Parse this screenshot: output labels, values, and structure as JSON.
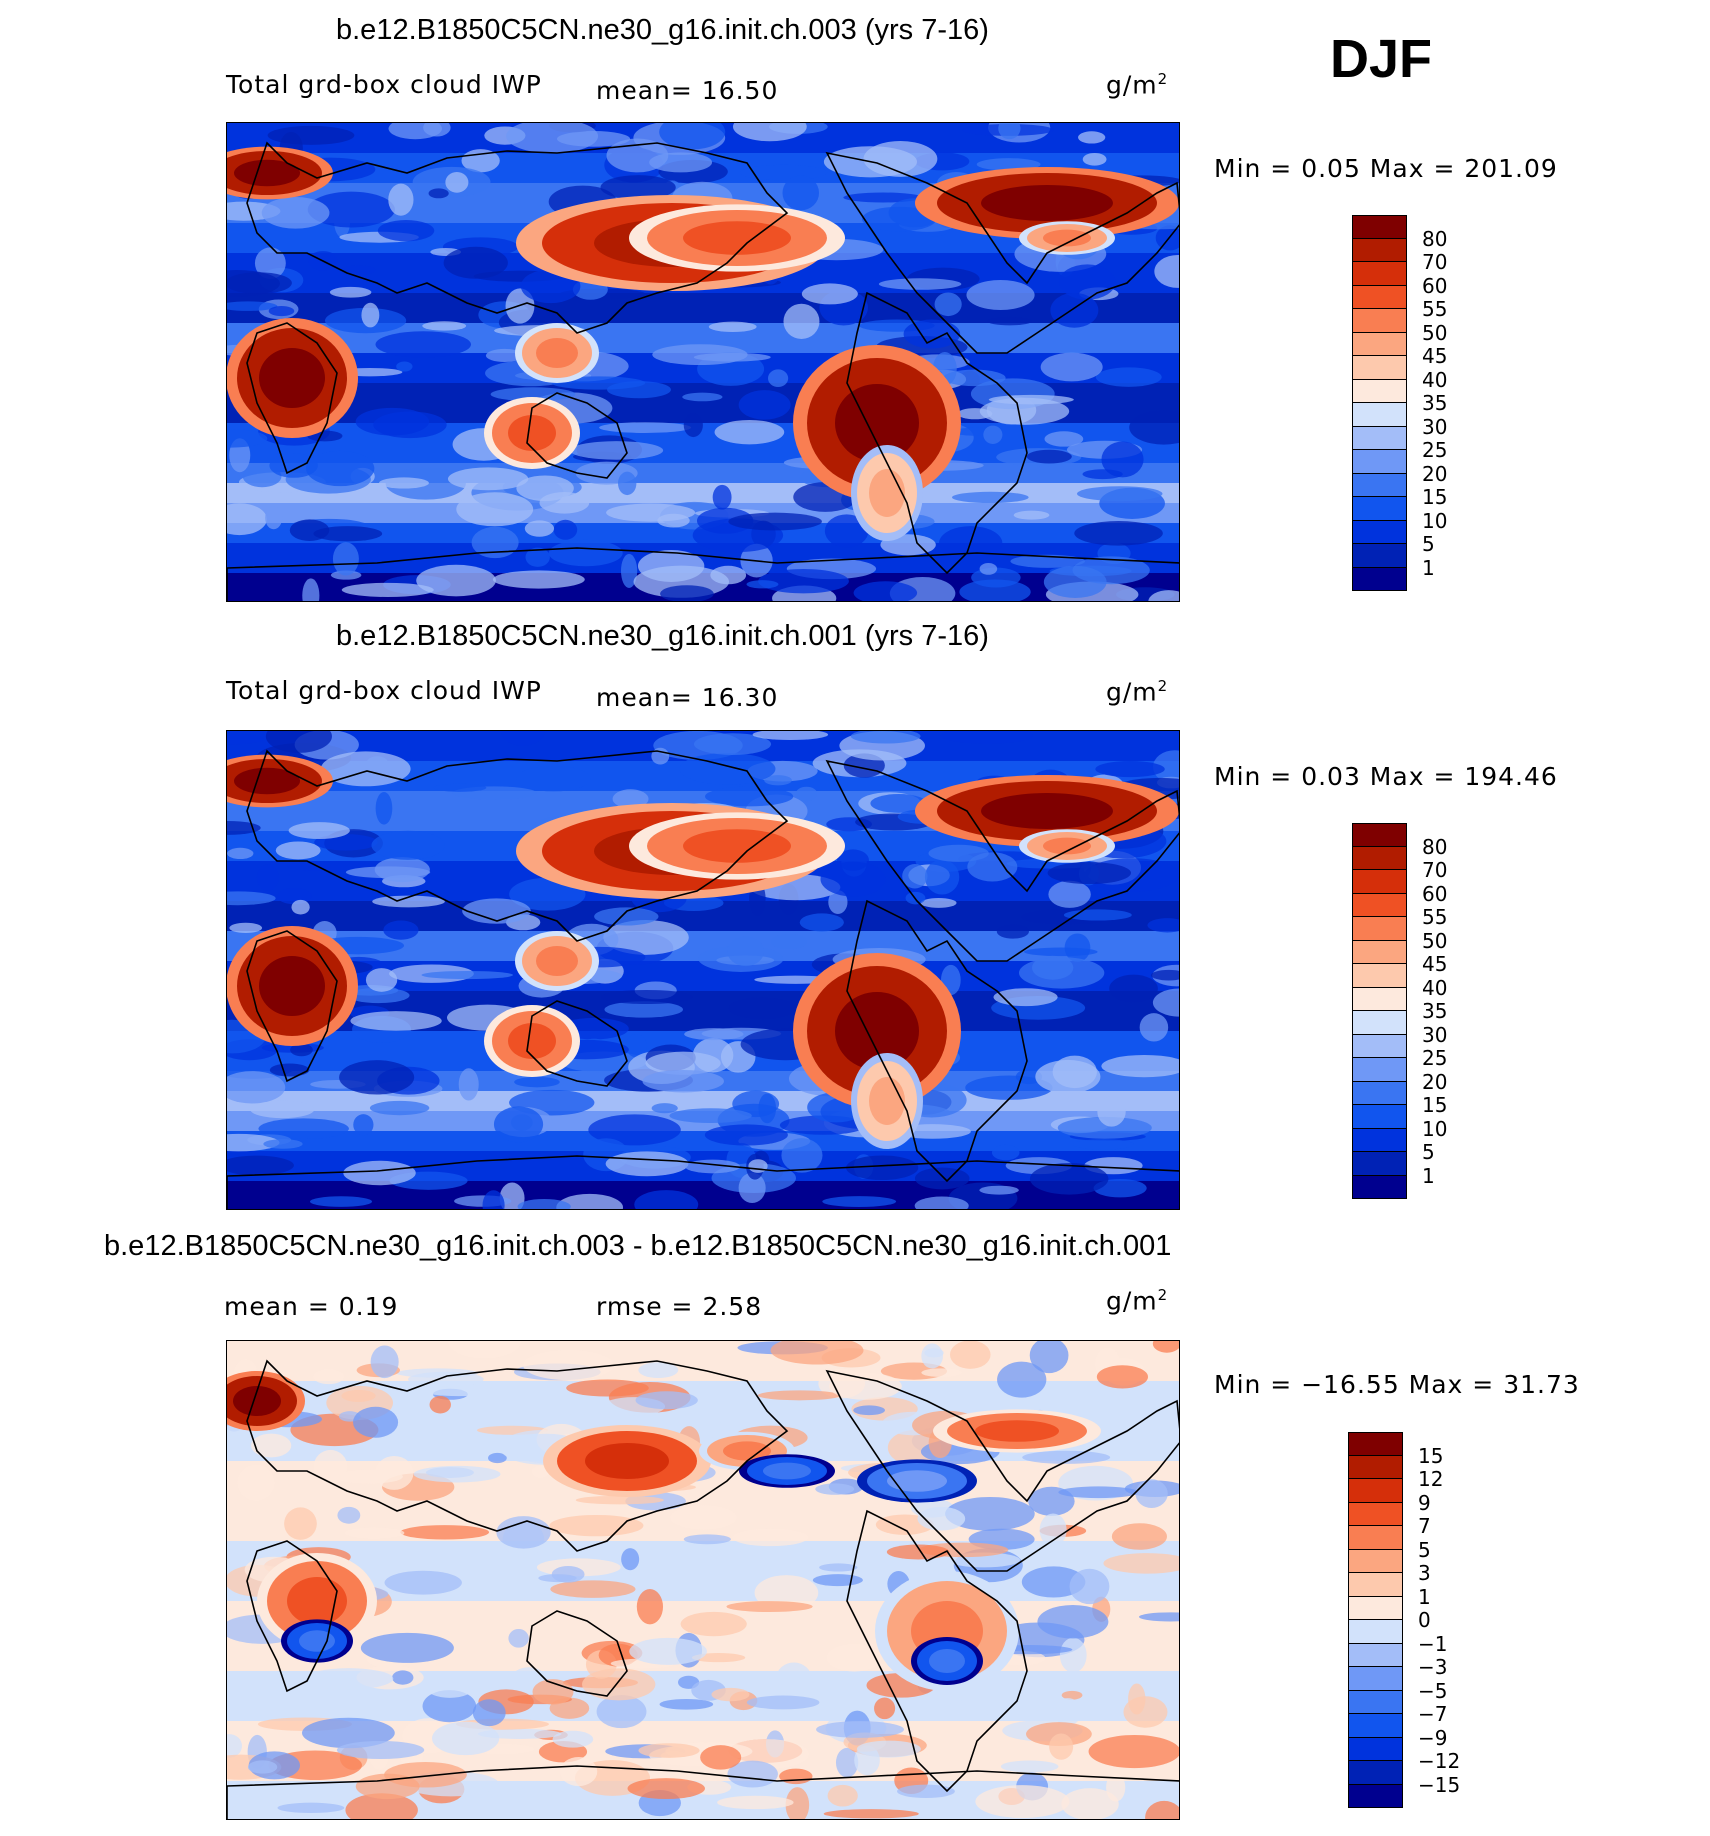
{
  "season": "DJF",
  "palettes": {
    "abs": [
      "#00008f",
      "#0022b5",
      "#0033dd",
      "#1155ee",
      "#3a75f2",
      "#6f98f6",
      "#a3bdf8",
      "#d2e2fb",
      "#fde9dd",
      "#fdc9ad",
      "#fba680",
      "#f97e52",
      "#ef5124",
      "#d52f0a",
      "#b11c00",
      "#7f0000"
    ],
    "diff": [
      "#00008f",
      "#0022b5",
      "#0033dd",
      "#1155ee",
      "#3a75f2",
      "#6f98f6",
      "#a3bdf8",
      "#d2e2fb",
      "#fde9dd",
      "#fdc9ad",
      "#fba680",
      "#f97e52",
      "#ef5124",
      "#d52f0a",
      "#b11c00",
      "#7f0000"
    ]
  },
  "panels": [
    {
      "title": "b.e12.B1850C5CN.ne30_g16.init.ch.003 (yrs 7-16)",
      "field": "Total grd-box cloud IWP",
      "stat1": "mean=   16.50",
      "stat2": "",
      "units": "g/m",
      "units_sup": "2",
      "minmax": "Min =     0.05  Max  =  201.09",
      "ticks": [
        "80",
        "70",
        "60",
        "55",
        "50",
        "45",
        "40",
        "35",
        "30",
        "25",
        "20",
        "15",
        "10",
        "5",
        "1"
      ],
      "palette": "abs",
      "variant": 0
    },
    {
      "title": "b.e12.B1850C5CN.ne30_g16.init.ch.001 (yrs 7-16)",
      "field": "Total grd-box cloud IWP",
      "stat1": "mean=   16.30",
      "stat2": "",
      "units": "g/m",
      "units_sup": "2",
      "minmax": "Min =     0.03  Max  =  194.46",
      "ticks": [
        "80",
        "70",
        "60",
        "55",
        "50",
        "45",
        "40",
        "35",
        "30",
        "25",
        "20",
        "15",
        "10",
        "5",
        "1"
      ],
      "palette": "abs",
      "variant": 1
    },
    {
      "title": "b.e12.B1850C5CN.ne30_g16.init.ch.003 - b.e12.B1850C5CN.ne30_g16.init.ch.001",
      "field": "",
      "stat1": "mean =     0.19",
      "stat2": "rmse =     2.58",
      "units": "g/m",
      "units_sup": "2",
      "minmax": "Min  =  −16.55  Max  =    31.73",
      "ticks": [
        "15",
        "12",
        "9",
        "7",
        "5",
        "3",
        "1",
        "0",
        "−1",
        "−3",
        "−5",
        "−7",
        "−9",
        "−12",
        "−15"
      ],
      "palette": "diff",
      "variant": 2
    }
  ]
}
